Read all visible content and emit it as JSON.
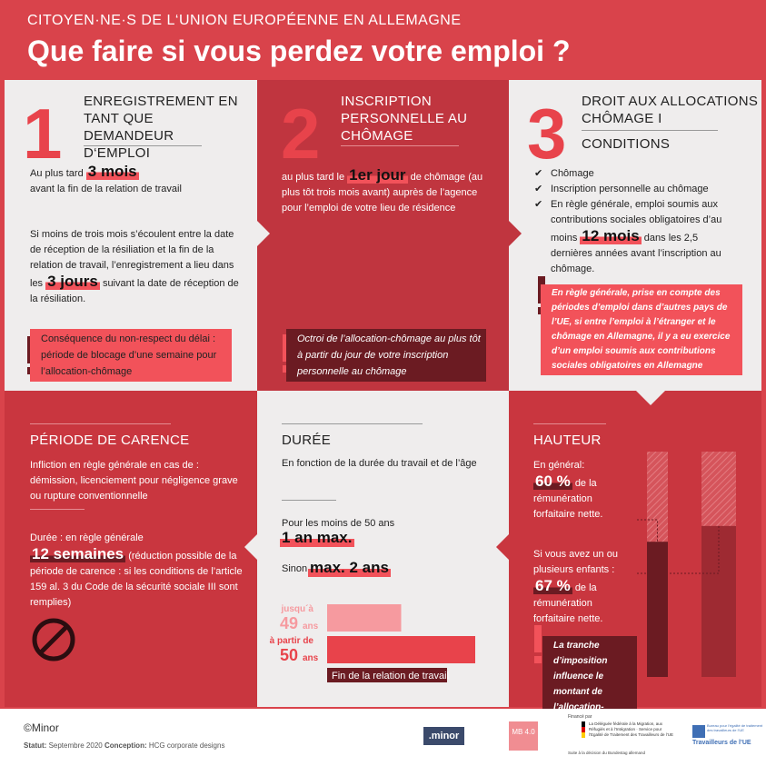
{
  "header": {
    "kicker": "CITOYEN·NE·S DE L‘UNION EUROPÉENNE EN ALLEMAGNE",
    "title": "Que faire si vous perdez votre emploi ?"
  },
  "step1": {
    "number": "1",
    "title": "ENREGISTREMENT EN TANT QUE DEMANDEUR D‘EMPLOI",
    "p1": [
      "Au plus tard",
      "3 mois",
      "avant la fin de la relation de travail"
    ],
    "p2": [
      "Si moins de trois mois s’écoulent entre la date de réception de la résiliation et la fin de la relation de travail, l’enregistrement a lieu dans les",
      "3 jours",
      "suivant la date de réception de la résiliation."
    ],
    "warning": "Conséquence du non-respect du délai : période de blocage d’une semaine pour l’allocation-chômage"
  },
  "step2": {
    "number": "2",
    "title": "INSCRIPTION PERSONNELLE AU CHÔMAGE",
    "p1": [
      "au plus tard le",
      "1er jour",
      "de chômage (au plus tôt trois mois avant) auprès de l’agence pour l’emploi de votre lieu de résidence"
    ],
    "warning": "Octroi de l’allocation-chômage au plus tôt à partir du jour de votre inscription personnelle au chômage"
  },
  "step3": {
    "number": "3",
    "title": "DROIT AUX ALLOCATIONS CHÔMAGE I",
    "subtitle": "CONDITIONS",
    "checks": [
      "Chômage",
      "Inscription personnelle au chômage",
      "En règle générale, emploi soumis aux contributions sociales obligatoires d’au moins"
    ],
    "highlight": "12 mois",
    "rest": "dans les 2,5 dernières années avant l’inscription au chômage.",
    "warning": "En règle générale, prise en compte des périodes d’emploi dans d’autres pays de l’UE, si entre l’emploi à l’étranger et le chômage en Allemagne, il y a eu exercice d’un emploi soumis aux contributions sociales obligatoires en Allemagne"
  },
  "carence": {
    "title": "PÉRIODE DE CARENCE",
    "p1": "Infliction en règle générale en cas de : démission, licenciement pour négligence grave ou rupture conventionnelle",
    "p2": [
      "Durée : en règle générale",
      "12 semaines",
      "(réduction possible de la période de carence : si les conditions de l’article 159 al. 3 du Code de la sécurité sociale III sont remplies)"
    ]
  },
  "duree": {
    "title": "DURÉE",
    "p1": "En fonction de la durée du travail et de l’âge",
    "line1": "Pour les moins de 50 ans",
    "h1": "1 an max.",
    "line2": "Sinon",
    "h2": "max. 2 ans",
    "chart": {
      "type": "bar",
      "groups": [
        {
          "top": "jusqu´à",
          "age": "49",
          "unit": "ans"
        },
        {
          "top": "à partir de",
          "age": "50",
          "unit": "ans"
        }
      ],
      "values": [
        1,
        2
      ],
      "colors": [
        "#f69a9f",
        "#e8434b"
      ],
      "xlim": [
        0,
        2
      ],
      "axis_label": "Fin de la relation de travail"
    }
  },
  "hauteur": {
    "title": "HAUTEUR",
    "p1": [
      "En général:",
      "60 %",
      "de la rémunération forfaitaire nette."
    ],
    "p2": [
      "Si vous avez un ou plusieurs enfants :",
      "67 %",
      "de la rémunération forfaitaire nette."
    ],
    "warning": "La tranche d’imposition influence le montant de l’allocation-chômage",
    "chart": {
      "type": "bar",
      "values": [
        60,
        67
      ],
      "colors": [
        "#6b1b22",
        "#9e2a32"
      ],
      "ylim": [
        0,
        100
      ]
    }
  },
  "footer": {
    "copyright": "©Minor",
    "status_label": "Statut:",
    "status": "Septembre 2020",
    "conception_label": "Conception:",
    "conception": "HCG corporate designs",
    "logo_minor": ".minor",
    "logo_mb": "MB 4.0",
    "funded": "Financé par",
    "ministry": "La Déléguée fédérale à la Migration, aux Réfugiés et à l’Intégration · Service pour l’Egalité de Traitement des Travailleurs de l’UE",
    "decision": "Suite à la décision du Bundestag allemand",
    "bureau_small": "Bureau pour l’égalité de traitement des travailleurs de l’UE",
    "bureau": "Travailleurs de l’UE"
  }
}
